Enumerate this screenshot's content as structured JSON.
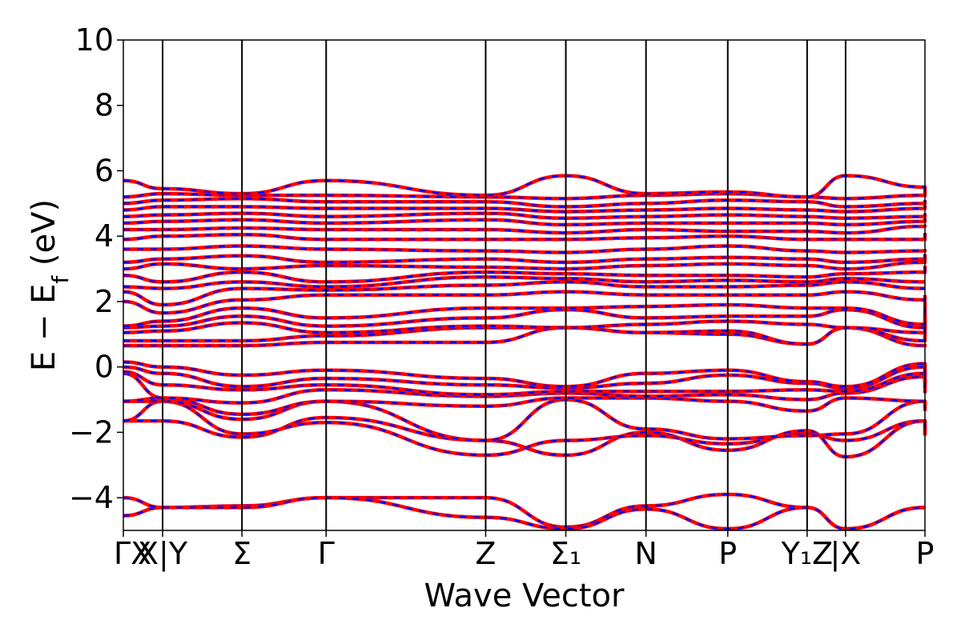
{
  "chart_data": {
    "type": "line",
    "xlabel": "Wave Vector",
    "ylabel_main": "E − E",
    "ylabel_sub": "f",
    "ylabel_unit": " (eV)",
    "ylim": [
      -5,
      10
    ],
    "yticks": [
      10,
      8,
      6,
      4,
      2,
      0,
      -2,
      -4
    ],
    "ytick_labels": [
      "10",
      "8",
      "6",
      "4",
      "2",
      "0",
      "−2",
      "−4"
    ],
    "kpath": {
      "x_range": [
        0,
        1
      ],
      "points": [
        {
          "x": 0.0,
          "label": "ΓX"
        },
        {
          "x": 0.049,
          "label": "X|Y"
        },
        {
          "x": 0.148,
          "label": "Σ"
        },
        {
          "x": 0.253,
          "label": "Γ"
        },
        {
          "x": 0.452,
          "label": "Z"
        },
        {
          "x": 0.552,
          "label": "Σ₁"
        },
        {
          "x": 0.652,
          "label": "N"
        },
        {
          "x": 0.754,
          "label": "P"
        },
        {
          "x": 0.853,
          "label": "Y₁Z"
        },
        {
          "x": 0.901,
          "label": "|X"
        },
        {
          "x": 1.0,
          "label": "P"
        }
      ]
    },
    "series": [
      {
        "color": "#ff0000",
        "style": "solid"
      },
      {
        "color": "#0000ff",
        "style": "dashed"
      }
    ],
    "bands": [
      [
        -4.55,
        -4.3,
        -4.25,
        -4.0,
        -4.0,
        -4.9,
        -4.25,
        -3.9,
        -4.3,
        -4.95,
        -4.3,
        -4.3
      ],
      [
        -4.0,
        -4.3,
        -4.3,
        -4.0,
        -4.6,
        -4.95,
        -4.35,
        -4.95,
        -4.3,
        -4.95,
        -4.3,
        -4.3
      ],
      [
        -1.65,
        -1.65,
        -2.15,
        -1.55,
        -2.25,
        -2.7,
        -2.0,
        -2.55,
        -1.95,
        -2.75,
        -1.65,
        -2.1
      ],
      [
        -1.65,
        -1.05,
        -2.05,
        -1.7,
        -2.7,
        -2.25,
        -2.1,
        -2.35,
        -2.05,
        -2.25,
        -1.65,
        -2.05
      ],
      [
        -1.05,
        -1.05,
        -1.6,
        -1.05,
        -2.25,
        -1.0,
        -1.9,
        -2.2,
        -2.1,
        -2.05,
        -1.05,
        -1.35
      ],
      [
        -1.05,
        -0.95,
        -1.45,
        -1.05,
        -1.2,
        -0.95,
        -0.95,
        -1.05,
        -1.35,
        -0.95,
        -1.05,
        -1.2
      ],
      [
        -0.2,
        -0.95,
        -1.1,
        -0.7,
        -0.9,
        -0.8,
        -0.9,
        -0.85,
        -1.0,
        -0.8,
        -0.3,
        -0.8
      ],
      [
        -0.15,
        -0.55,
        -0.7,
        -0.55,
        -0.85,
        -0.75,
        -0.75,
        -0.75,
        -0.7,
        -0.75,
        -0.2,
        -0.65
      ],
      [
        0.0,
        -0.2,
        -0.6,
        -0.35,
        -0.55,
        -0.65,
        -0.5,
        -0.25,
        -0.5,
        -0.65,
        0.0,
        -0.5
      ],
      [
        0.15,
        0.0,
        -0.25,
        -0.1,
        -0.35,
        -0.6,
        -0.2,
        -0.1,
        -0.45,
        -0.6,
        0.1,
        -0.25
      ],
      [
        0.65,
        0.65,
        0.65,
        0.75,
        0.75,
        1.2,
        1.05,
        1.0,
        0.7,
        1.2,
        0.65,
        0.7
      ],
      [
        0.8,
        0.8,
        0.8,
        0.95,
        1.2,
        1.2,
        1.05,
        1.1,
        0.7,
        1.2,
        0.8,
        1.3
      ],
      [
        1.05,
        1.1,
        1.35,
        1.05,
        1.25,
        1.2,
        1.3,
        1.4,
        1.3,
        1.2,
        1.05,
        1.3
      ],
      [
        1.2,
        1.25,
        1.55,
        1.25,
        1.5,
        1.75,
        1.5,
        1.55,
        1.55,
        1.75,
        1.2,
        1.6
      ],
      [
        1.25,
        1.4,
        1.8,
        1.5,
        1.8,
        1.8,
        1.85,
        1.9,
        1.8,
        1.8,
        1.3,
        2.0
      ],
      [
        2.0,
        1.65,
        2.05,
        2.2,
        2.2,
        2.3,
        2.2,
        2.2,
        2.2,
        2.3,
        2.05,
        2.2
      ],
      [
        2.3,
        1.9,
        2.4,
        2.35,
        2.5,
        2.6,
        2.45,
        2.45,
        2.5,
        2.6,
        2.4,
        2.4
      ],
      [
        2.45,
        2.4,
        2.6,
        2.45,
        2.75,
        2.7,
        2.6,
        2.65,
        2.6,
        2.7,
        2.6,
        2.6
      ],
      [
        2.8,
        2.6,
        2.9,
        2.6,
        2.9,
        2.85,
        2.8,
        2.8,
        2.75,
        2.85,
        2.9,
        3.1
      ],
      [
        3.0,
        3.15,
        3.0,
        3.1,
        3.05,
        3.0,
        3.1,
        3.15,
        3.1,
        3.0,
        3.2,
        3.3
      ],
      [
        3.2,
        3.3,
        3.4,
        3.2,
        3.3,
        3.2,
        3.3,
        3.35,
        3.3,
        3.2,
        3.3,
        3.45
      ],
      [
        3.6,
        3.6,
        3.7,
        3.6,
        3.55,
        3.5,
        3.6,
        3.7,
        3.55,
        3.5,
        3.55,
        3.6
      ],
      [
        3.9,
        4.0,
        4.05,
        3.9,
        3.9,
        3.9,
        3.95,
        4.0,
        3.9,
        3.9,
        3.9,
        4.1
      ],
      [
        4.2,
        4.2,
        4.25,
        4.2,
        4.2,
        4.1,
        4.2,
        4.15,
        4.15,
        4.1,
        4.3,
        4.35
      ],
      [
        4.4,
        4.45,
        4.5,
        4.4,
        4.5,
        4.35,
        4.4,
        4.4,
        4.4,
        4.35,
        4.45,
        4.55
      ],
      [
        4.6,
        4.65,
        4.7,
        4.6,
        4.7,
        4.55,
        4.6,
        4.65,
        4.6,
        4.55,
        4.6,
        4.7
      ],
      [
        4.8,
        4.9,
        4.9,
        4.85,
        4.85,
        4.75,
        4.8,
        4.85,
        4.8,
        4.75,
        4.85,
        4.95
      ],
      [
        5.0,
        5.1,
        5.15,
        5.05,
        5.05,
        4.9,
        5.0,
        5.1,
        5.05,
        4.9,
        5.0,
        5.1
      ],
      [
        5.2,
        5.3,
        5.25,
        5.25,
        5.2,
        5.15,
        5.25,
        5.3,
        5.2,
        5.15,
        5.25,
        5.2
      ],
      [
        5.7,
        5.45,
        5.3,
        5.7,
        5.25,
        5.85,
        5.3,
        5.35,
        5.2,
        5.85,
        5.5,
        5.25
      ]
    ]
  }
}
